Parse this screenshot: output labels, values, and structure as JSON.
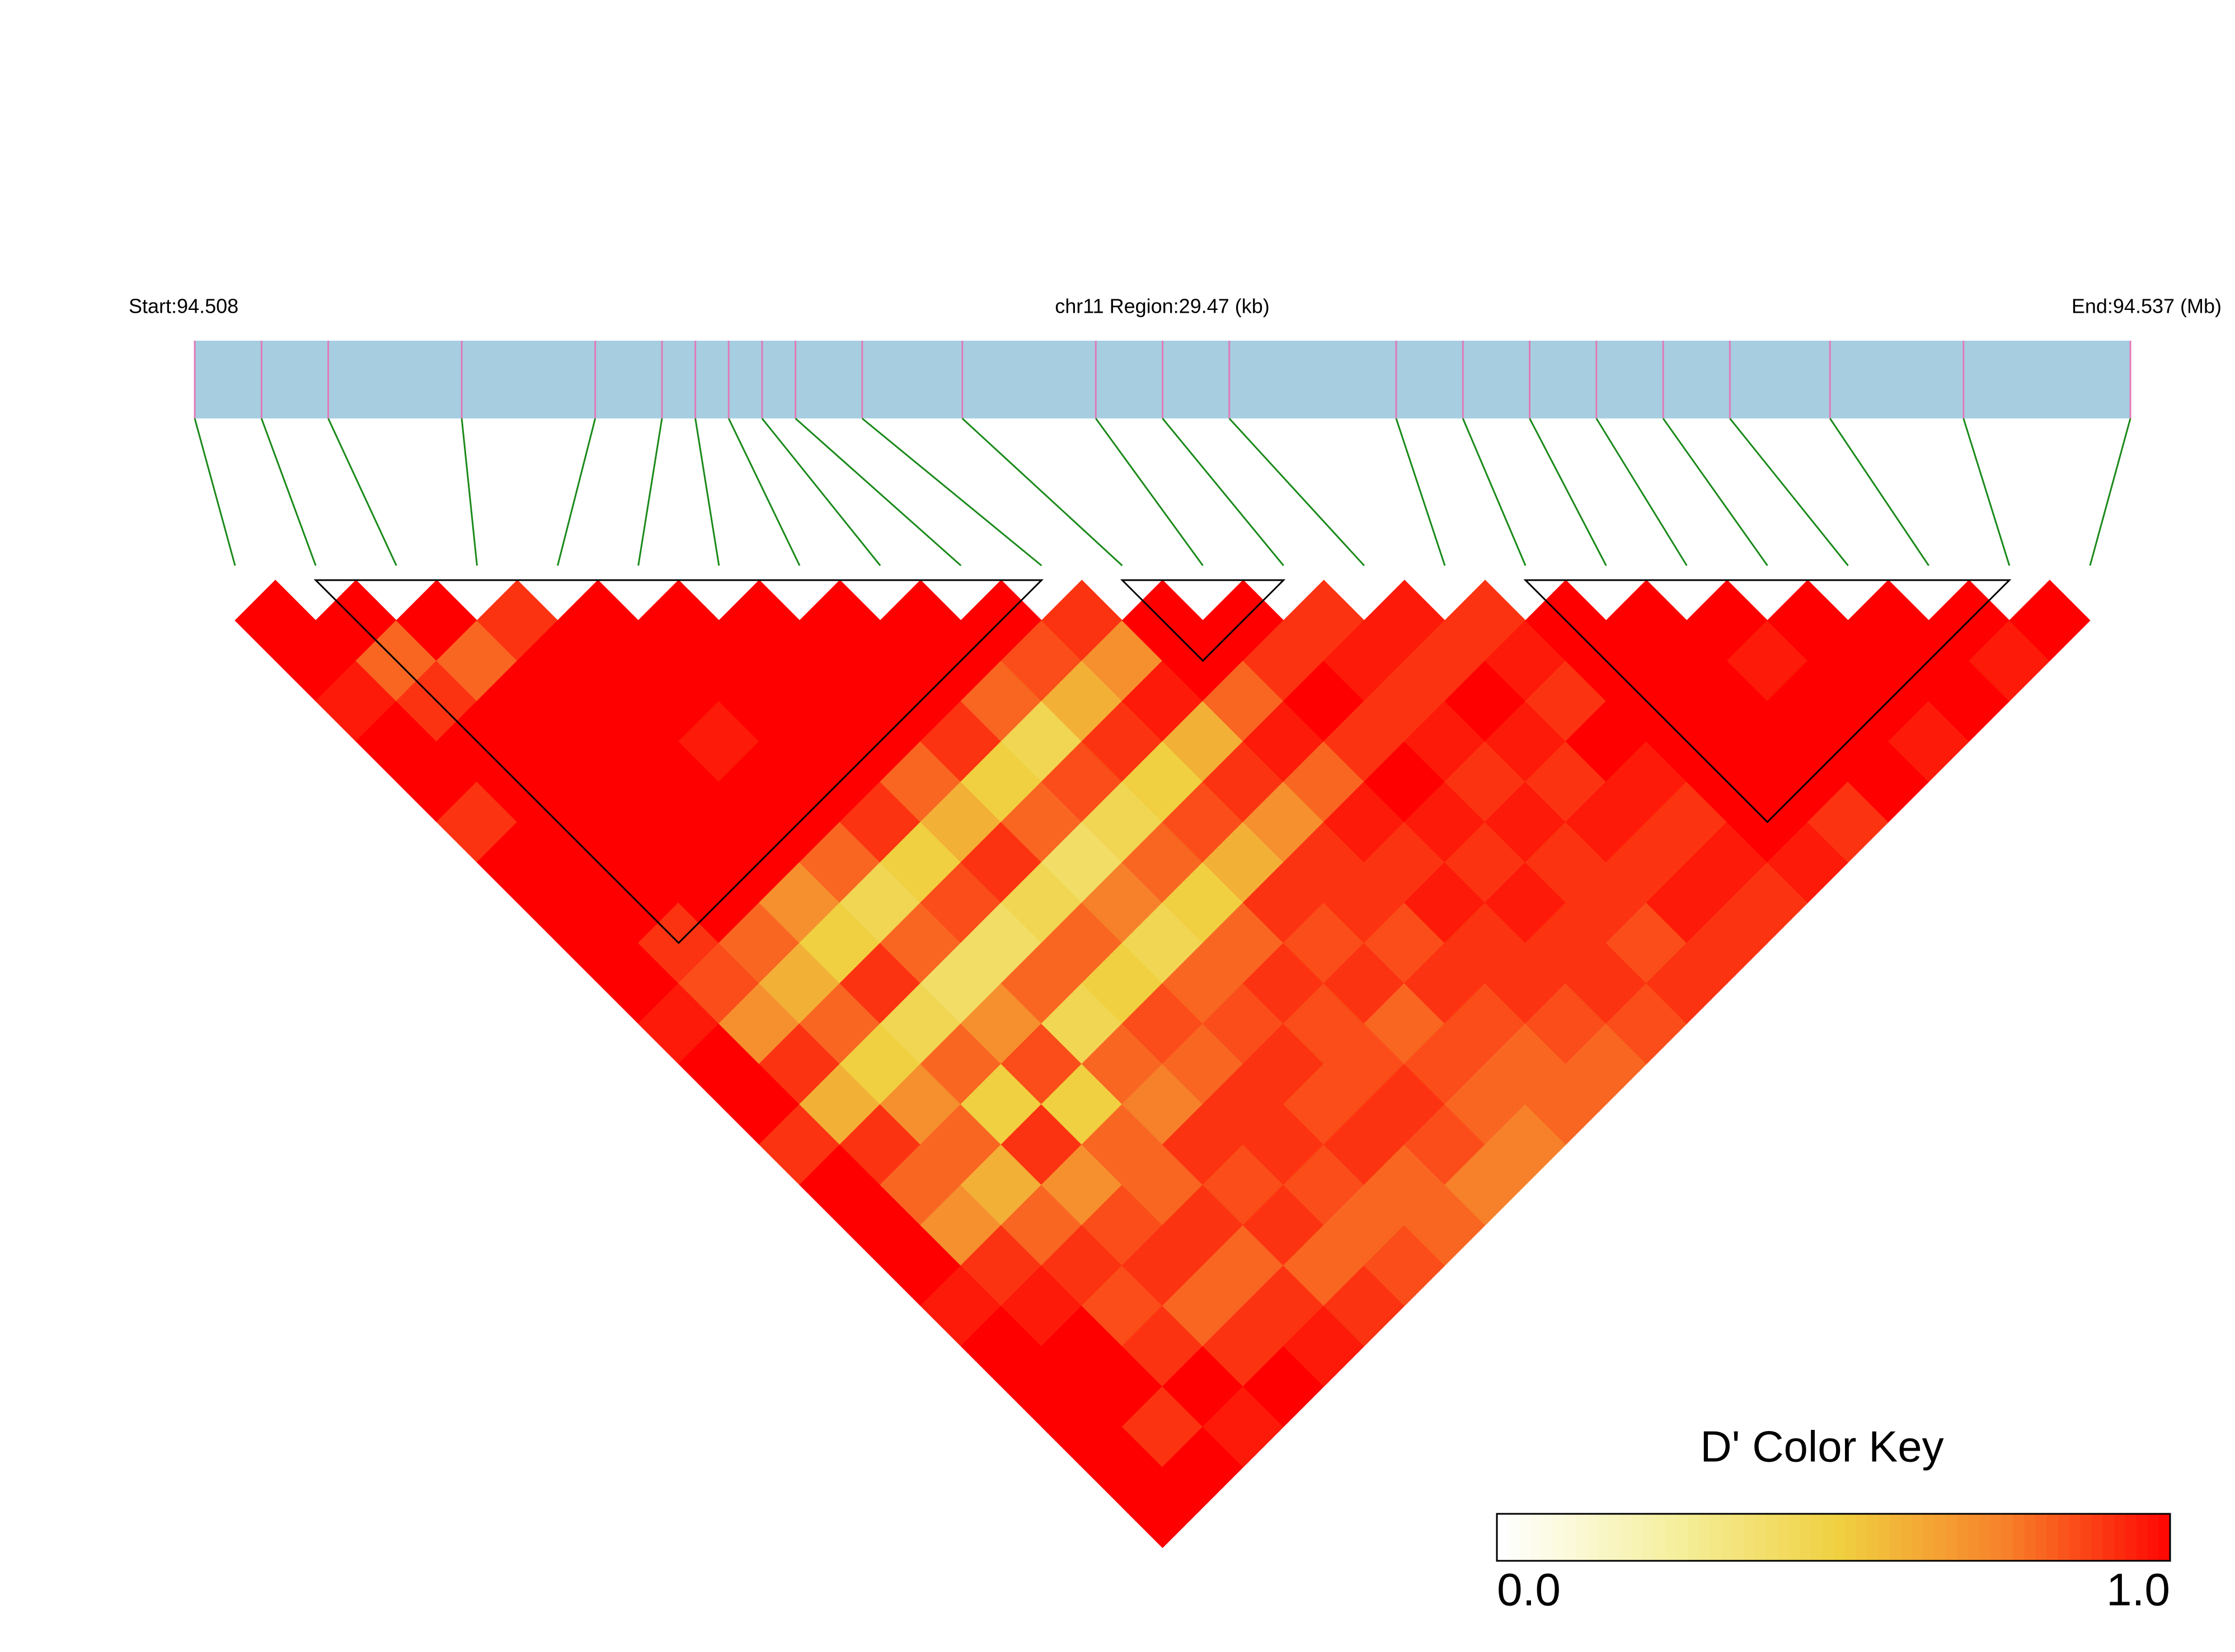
{
  "chart_data": {
    "type": "ld_heatmap",
    "start_label": "Start:94.508",
    "region_label": "chr11 Region:29.47 (kb)",
    "end_label": "End:94.537 (Mb)",
    "xlim": [
      94.508,
      94.537
    ],
    "snp_positions": [
      94.508,
      94.509,
      94.51,
      94.512,
      94.514,
      94.515,
      94.5155,
      94.516,
      94.5165,
      94.517,
      94.518,
      94.5195,
      94.5215,
      94.5225,
      94.5235,
      94.526,
      94.527,
      94.528,
      94.529,
      94.53,
      94.531,
      94.5325,
      94.5345,
      94.537
    ],
    "dprime": [
      [
        1,
        1,
        0.95,
        1,
        1,
        0.9,
        1,
        1,
        1,
        1,
        0.95,
        1,
        1,
        0.9,
        1,
        1,
        1,
        0.95,
        1,
        1,
        1,
        1,
        1
      ],
      [
        1,
        0.8,
        0.9,
        1,
        1,
        1,
        1,
        1,
        0.9,
        0.85,
        0.7,
        0.9,
        0.6,
        0.9,
        0.8,
        0.7,
        0.9,
        0.95,
        1,
        1,
        0.9,
        1
      ],
      [
        1,
        0.8,
        1,
        1,
        1,
        1,
        1,
        1,
        0.8,
        0.6,
        0.8,
        0.5,
        0.7,
        0.8,
        0.6,
        0.8,
        0.9,
        0.85,
        0.9,
        1,
        0.95
      ],
      [
        0.9,
        1,
        1,
        1,
        1,
        1,
        1,
        0.7,
        0.5,
        0.9,
        0.45,
        0.8,
        0.5,
        0.9,
        0.7,
        0.85,
        0.9,
        0.8,
        0.9,
        1
      ],
      [
        1,
        1,
        1,
        0.95,
        1,
        1,
        0.8,
        0.45,
        0.8,
        0.4,
        0.7,
        0.85,
        0.5,
        0.8,
        0.8,
        0.9,
        0.8,
        0.9,
        0.95
      ],
      [
        1,
        1,
        1,
        1,
        1,
        0.9,
        0.5,
        0.85,
        0.4,
        0.8,
        0.45,
        0.8,
        0.75,
        0.9,
        0.85,
        0.9,
        0.8,
        0.9
      ],
      [
        1,
        1,
        1,
        1,
        0.8,
        0.6,
        0.9,
        0.45,
        0.8,
        0.5,
        0.85,
        0.8,
        0.9,
        0.9,
        0.85,
        0.8,
        0.85
      ],
      [
        1,
        1,
        1,
        0.9,
        0.5,
        0.8,
        0.4,
        0.75,
        0.45,
        0.8,
        0.85,
        0.9,
        0.85,
        0.9,
        0.8,
        0.8
      ],
      [
        1,
        1,
        0.8,
        0.45,
        0.85,
        0.45,
        0.8,
        0.5,
        0.8,
        0.9,
        0.85,
        0.85,
        0.9,
        0.85,
        0.75
      ],
      [
        1,
        0.85,
        0.6,
        0.9,
        0.5,
        0.85,
        0.6,
        0.9,
        0.85,
        0.9,
        0.8,
        0.85,
        0.8,
        0.75
      ],
      [
        0.9,
        0.7,
        0.95,
        0.6,
        0.9,
        0.7,
        0.9,
        0.9,
        0.85,
        0.9,
        0.85,
        0.8,
        0.8
      ],
      [
        1,
        1,
        0.8,
        0.95,
        0.8,
        0.95,
        0.9,
        0.95,
        0.9,
        0.9,
        0.85,
        0.8
      ],
      [
        1,
        0.9,
        1,
        0.9,
        1,
        0.95,
        0.9,
        0.95,
        0.9,
        0.9,
        0.85
      ],
      [
        0.9,
        0.95,
        0.9,
        0.95,
        0.9,
        0.95,
        0.9,
        0.9,
        0.85,
        0.9
      ],
      [
        0.95,
        0.9,
        1,
        0.95,
        0.9,
        0.95,
        0.9,
        0.95,
        0.9
      ],
      [
        0.9,
        0.95,
        0.9,
        1,
        0.95,
        0.9,
        0.95,
        0.9
      ],
      [
        1,
        1,
        1,
        1,
        1,
        1,
        0.95
      ],
      [
        1,
        1,
        1,
        1,
        1,
        0.9
      ],
      [
        1,
        0.95,
        1,
        1,
        1
      ],
      [
        1,
        1,
        1,
        0.95
      ],
      [
        1,
        1,
        1
      ],
      [
        1,
        0.95
      ],
      [
        1
      ]
    ],
    "blocks": [
      [
        1,
        10
      ],
      [
        11,
        13
      ],
      [
        16,
        22
      ]
    ],
    "bar_color": "#a6cee0",
    "snp_tick_color": "#e07ab8",
    "connector_color": "#1a8a1a",
    "color_key": {
      "title": "D' Color Key",
      "range": [
        0,
        1
      ],
      "ticks": [
        {
          "value": 0,
          "label": "0.0"
        },
        {
          "value": 1,
          "label": "1.0"
        }
      ],
      "colors": [
        "#ffffff",
        "#f5f0a0",
        "#f0d040",
        "#f7802a",
        "#ff0000"
      ]
    }
  }
}
